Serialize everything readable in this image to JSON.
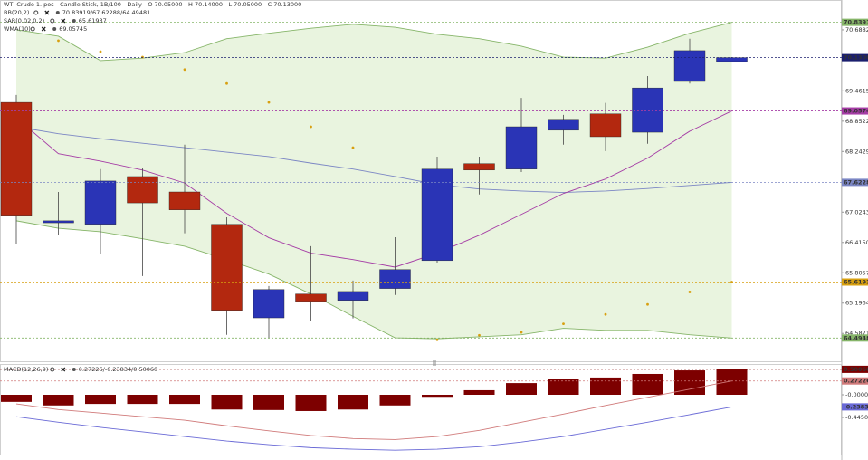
{
  "chart_data": [
    {
      "type": "candlestick",
      "title": "WTI Crude 1. pos - Candle Stick, 1B/100 - Daily - O 70.05000 - H 70.14000 - L 70.05000 - C 70.13000",
      "ylim": [
        64.1,
        70.96
      ],
      "yticks": [
        70.68822,
        69.46159,
        68.85228,
        68.24297,
        67.02435,
        66.41503,
        65.80572,
        65.19641,
        {
          "value": 64.5871,
          "label": "64.58710"
        }
      ],
      "up_color": "#2a34b6",
      "down_color": "#b3280f",
      "open": [
        69.23,
        66.81,
        66.78,
        67.74,
        67.43,
        66.78,
        64.9,
        65.38,
        65.25,
        65.49,
        66.05,
        68.0,
        67.89,
        68.67,
        69.0,
        68.63,
        69.65,
        70.05
      ],
      "high": [
        69.38,
        67.43,
        67.89,
        67.91,
        68.38,
        66.92,
        65.54,
        66.34,
        65.65,
        66.52,
        68.14,
        68.14,
        69.32,
        68.98,
        69.22,
        69.76,
        70.51,
        70.14
      ],
      "low": [
        66.38,
        66.56,
        66.18,
        65.74,
        66.6,
        64.56,
        64.49,
        64.83,
        64.89,
        65.36,
        66.01,
        67.38,
        67.83,
        68.38,
        68.25,
        68.4,
        69.61,
        70.05
      ],
      "close": [
        66.96,
        66.85,
        67.65,
        67.21,
        67.07,
        65.05,
        65.47,
        65.23,
        65.43,
        65.87,
        67.89,
        67.87,
        68.74,
        68.89,
        68.54,
        69.52,
        70.27,
        70.13
      ],
      "close_labels": [
        null,
        null,
        null,
        null,
        null,
        null,
        null,
        null,
        null,
        null,
        null,
        null,
        null,
        null,
        null,
        null,
        null,
        "70.13000"
      ],
      "band_fill": "#e9f4df",
      "legend": [
        {
          "name": "BB(20,2)",
          "readout": "70.83919/67.62288/64.49481"
        },
        {
          "name": "SAR(0.02,0.2)",
          "readout": "65.61937"
        },
        {
          "name": "WMA(10)",
          "readout": "69.05745"
        }
      ],
      "series": [
        {
          "type": "line",
          "band": "upper",
          "color": "#86b569",
          "values": [
            70.69,
            70.56,
            70.07,
            70.12,
            70.23,
            70.51,
            70.62,
            70.72,
            70.8,
            70.74,
            70.6,
            70.51,
            70.36,
            70.14,
            70.12,
            70.34,
            70.62,
            70.83919
          ],
          "value_labels": [
            null,
            null,
            null,
            null,
            null,
            null,
            null,
            null,
            null,
            null,
            null,
            null,
            null,
            null,
            null,
            null,
            null,
            "70.83919"
          ]
        },
        {
          "type": "line",
          "color": "#7b86c4",
          "values": [
            68.74,
            68.6,
            68.5,
            68.41,
            68.32,
            68.23,
            68.14,
            68.01,
            67.89,
            67.74,
            67.58,
            67.49,
            67.45,
            67.42,
            67.45,
            67.5,
            67.56,
            67.62288
          ],
          "value_labels": [
            null,
            null,
            null,
            null,
            null,
            null,
            null,
            null,
            null,
            null,
            null,
            null,
            null,
            null,
            null,
            null,
            null,
            "67.62288"
          ]
        },
        {
          "type": "line",
          "band": "lower",
          "color": "#86b569",
          "values": [
            66.85,
            66.7,
            66.63,
            66.49,
            66.34,
            66.07,
            65.78,
            65.38,
            64.93,
            64.5,
            64.48,
            64.52,
            64.56,
            64.69,
            64.65,
            64.65,
            64.56,
            64.49481
          ],
          "value_labels": [
            null,
            null,
            null,
            null,
            null,
            null,
            null,
            null,
            null,
            null,
            null,
            null,
            null,
            null,
            null,
            null,
            null,
            "64.49481"
          ]
        },
        {
          "type": "dots",
          "color": "#d8a010",
          "values": [
            null,
            70.47,
            70.25,
            70.14,
            69.89,
            69.61,
            69.23,
            68.74,
            68.32,
            null,
            64.46,
            64.55,
            64.61,
            64.78,
            64.97,
            65.17,
            65.42,
            65.61937
          ],
          "value_labels": [
            null,
            null,
            null,
            null,
            null,
            null,
            null,
            null,
            null,
            null,
            null,
            null,
            null,
            null,
            null,
            null,
            null,
            "65.61937"
          ]
        },
        {
          "type": "line",
          "color": "#a53ca5",
          "values": [
            68.92,
            68.2,
            68.05,
            67.87,
            67.61,
            67.0,
            66.51,
            66.2,
            66.07,
            65.92,
            66.2,
            66.56,
            66.98,
            67.4,
            67.69,
            68.11,
            68.65,
            69.05745
          ],
          "value_labels": [
            null,
            null,
            null,
            null,
            null,
            null,
            null,
            null,
            null,
            null,
            null,
            null,
            null,
            null,
            null,
            null,
            null,
            "69.05745"
          ]
        }
      ]
    },
    {
      "type": "macd",
      "ylim": [
        -1.14,
        0.57
      ],
      "yticks": [
        {
          "value": 0,
          "label": "-0.00000"
        },
        -0.44506
      ],
      "legend": [
        {
          "name": "MACD(12,26,9)",
          "readout": "0.27226/-0.23834/0.50060"
        }
      ],
      "series": [
        {
          "type": "bars",
          "color": "#7d0000",
          "values": [
            -0.14,
            -0.21,
            -0.18,
            -0.18,
            -0.18,
            -0.29,
            -0.3,
            -0.32,
            -0.29,
            -0.21,
            -0.04,
            0.09,
            0.23,
            0.32,
            0.34,
            0.41,
            0.48,
            0.5006
          ],
          "value_labels": [
            null,
            null,
            null,
            null,
            null,
            null,
            null,
            null,
            null,
            null,
            null,
            null,
            null,
            null,
            null,
            null,
            null,
            "0.50060"
          ]
        },
        {
          "type": "line",
          "color": "#d07a7a",
          "values": [
            -0.18,
            -0.29,
            -0.36,
            -0.43,
            -0.5,
            -0.61,
            -0.71,
            -0.8,
            -0.86,
            -0.88,
            -0.82,
            -0.7,
            -0.54,
            -0.38,
            -0.21,
            -0.05,
            0.11,
            0.27226
          ],
          "value_labels": [
            null,
            null,
            null,
            null,
            null,
            null,
            null,
            null,
            null,
            null,
            null,
            null,
            null,
            null,
            null,
            null,
            null,
            "0.27226"
          ]
        },
        {
          "type": "line",
          "color": "#6a6ad6",
          "values": [
            -0.43,
            -0.54,
            -0.64,
            -0.73,
            -0.82,
            -0.91,
            -0.98,
            -1.04,
            -1.07,
            -1.09,
            -1.07,
            -1.02,
            -0.93,
            -0.82,
            -0.68,
            -0.54,
            -0.39,
            -0.23834
          ],
          "value_labels": [
            null,
            null,
            null,
            null,
            null,
            null,
            null,
            null,
            null,
            null,
            null,
            null,
            null,
            null,
            null,
            null,
            null,
            "-0.23834"
          ]
        }
      ]
    }
  ]
}
